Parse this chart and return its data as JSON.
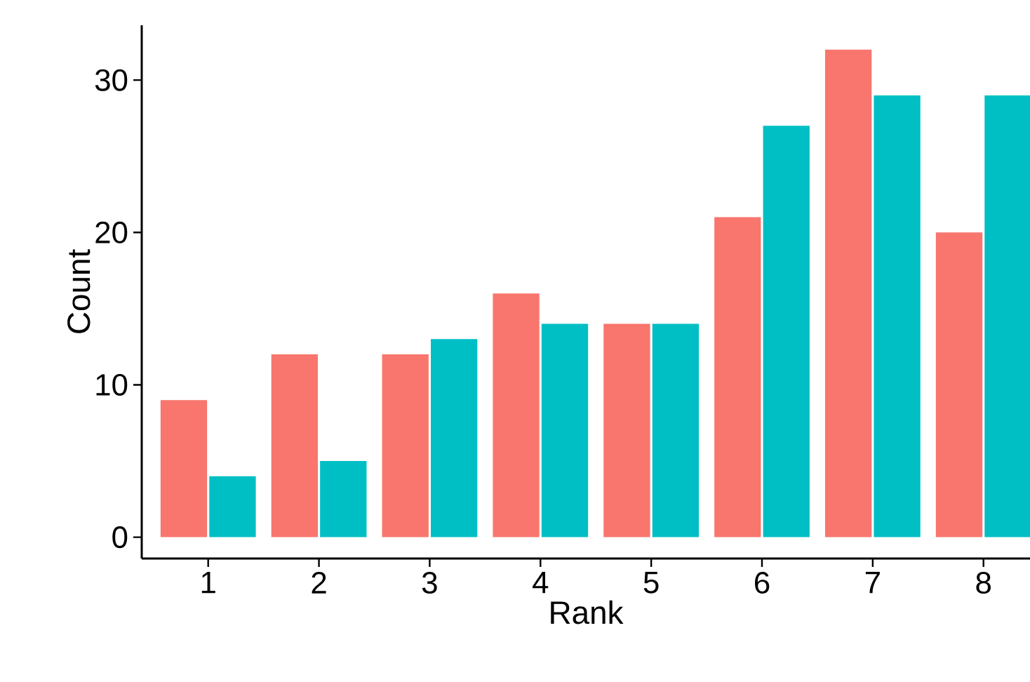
{
  "chart_data": {
    "type": "bar",
    "xlabel": "Rank",
    "ylabel": "Count",
    "categories": [
      "1",
      "2",
      "3",
      "4",
      "5",
      "6",
      "7",
      "8"
    ],
    "series": [
      {
        "color": "#f8766d",
        "values": [
          9,
          12,
          12,
          16,
          14,
          21,
          32,
          20
        ]
      },
      {
        "color": "#00bfc4",
        "values": [
          4,
          5,
          13,
          14,
          14,
          27,
          29,
          29
        ]
      }
    ],
    "ylim": [
      -1.4,
      33.6
    ],
    "yticks": [
      0,
      10,
      20,
      30
    ]
  }
}
